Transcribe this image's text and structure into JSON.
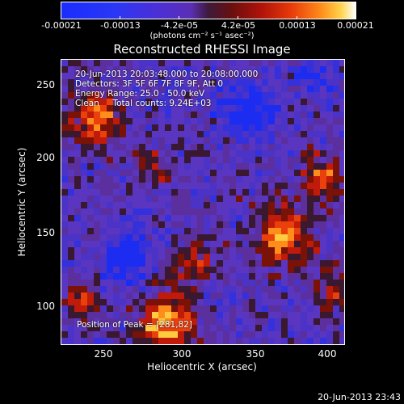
{
  "colorbar": {
    "tick_labels": [
      "-0.00021",
      "-0.00013",
      "-4.2e-05",
      "4.2e-05",
      "0.00013",
      "0.00021"
    ],
    "units": "(photons cm⁻² s⁻¹ asec⁻²)"
  },
  "title": "Reconstructed RHESSI Image",
  "info_lines": [
    "20-Jun-2013 20:03:48.000 to 20:08:00.000",
    "Detectors: 3F 5F 6F 7F 8F 9F, Att 0",
    "Energy Range: 25.0 - 50.0 keV",
    "Clean     Total counts: 9.24E+03"
  ],
  "peak_text": "Position of Peak = [281,82]",
  "axes": {
    "xlabel": "Heliocentric X (arcsec)",
    "ylabel": "Heliocentric Y (arcsec)",
    "xticks": [
      "250",
      "300",
      "350",
      "400"
    ],
    "yticks": [
      "250",
      "200",
      "150",
      "100"
    ]
  },
  "timestamp": "20-Jun-2013 23:43",
  "colors": {
    "background": "#000000",
    "low": "#1a2cff",
    "mid": "#5a36c0",
    "high": "#ffffff"
  }
}
